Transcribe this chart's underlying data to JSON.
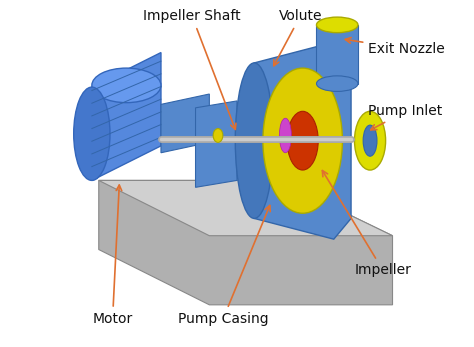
{
  "background_color": "#ffffff",
  "arrow_color": "#e07030",
  "label_color": "#111111",
  "label_fontsize": 10,
  "base_side_color": "#b0b0b0",
  "base_top_color": "#d0d0d0",
  "motor_body_color": "#5588dd",
  "motor_top_color": "#6699ee",
  "motor_front_color": "#4477cc",
  "shaft_color_outer": "#aaaaaa",
  "shaft_color_inner": "#cccccc",
  "pump_color": "#5588cc",
  "pump_front_color": "#4477bb",
  "impeller_color": "#ddcc00",
  "impeller_inner_color": "#cc3300",
  "nozzle_color": "#5588cc",
  "nozzle_top_color": "#dddd00",
  "inlet_color": "#dddd00",
  "inlet_inner_color": "#4477bb",
  "ball_color": "#ddcc00",
  "rib_color": "#3366aa",
  "edge_color": "#3366aa",
  "labels": [
    {
      "text": "Impeller Shaft",
      "tpos": [
        0.37,
        0.955
      ],
      "aend": [
        0.5,
        0.615
      ],
      "ha": "center"
    },
    {
      "text": "Volute",
      "tpos": [
        0.62,
        0.955
      ],
      "aend": [
        0.6,
        0.8
      ],
      "ha": "left"
    },
    {
      "text": "Exit Nozzle",
      "tpos": [
        0.88,
        0.86
      ],
      "aend": [
        0.8,
        0.89
      ],
      "ha": "left"
    },
    {
      "text": "Pump Inlet",
      "tpos": [
        0.88,
        0.68
      ],
      "aend": [
        0.875,
        0.62
      ],
      "ha": "left"
    },
    {
      "text": "Impeller",
      "tpos": [
        0.84,
        0.22
      ],
      "aend": [
        0.74,
        0.52
      ],
      "ha": "left"
    },
    {
      "text": "Pump Casing",
      "tpos": [
        0.46,
        0.08
      ],
      "aend": [
        0.6,
        0.42
      ],
      "ha": "center"
    },
    {
      "text": "Motor",
      "tpos": [
        0.14,
        0.08
      ],
      "aend": [
        0.16,
        0.48
      ],
      "ha": "center"
    }
  ]
}
